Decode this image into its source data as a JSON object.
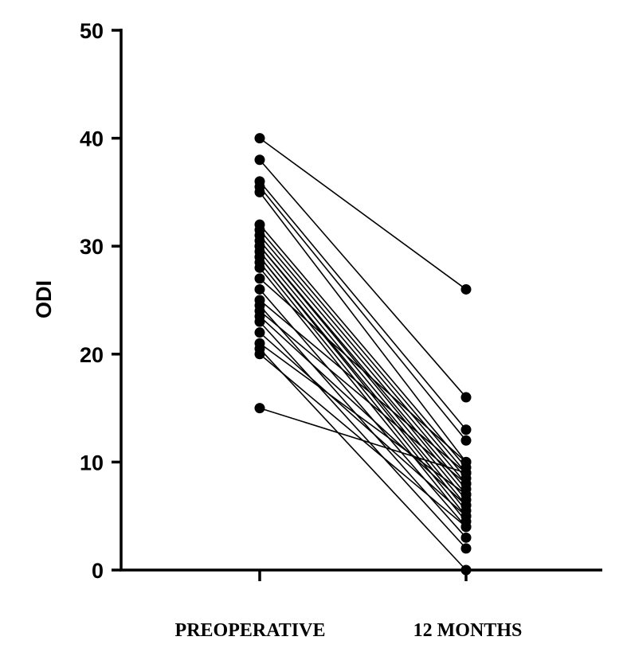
{
  "chart_data": {
    "type": "line",
    "categories": [
      "PREOPERATIVE",
      "12 MONTHS"
    ],
    "ylabel": "ODI",
    "ylim": [
      0,
      50
    ],
    "yticks": [
      "0",
      "10",
      "20",
      "30",
      "40",
      "50"
    ],
    "grid": false,
    "legend": "none",
    "line_color": "#000000",
    "series": [
      {
        "values": [
          40,
          26
        ]
      },
      {
        "values": [
          38,
          16
        ]
      },
      {
        "values": [
          36,
          13
        ]
      },
      {
        "values": [
          35.5,
          12
        ]
      },
      {
        "values": [
          35,
          10
        ]
      },
      {
        "values": [
          32,
          9.5
        ]
      },
      {
        "values": [
          31.5,
          9
        ]
      },
      {
        "values": [
          31,
          8.5
        ]
      },
      {
        "values": [
          30.5,
          8
        ]
      },
      {
        "values": [
          30,
          7.5
        ]
      },
      {
        "values": [
          30,
          7
        ]
      },
      {
        "values": [
          29.5,
          6.5
        ]
      },
      {
        "values": [
          29,
          6
        ]
      },
      {
        "values": [
          29,
          5.5
        ]
      },
      {
        "values": [
          28.5,
          5
        ]
      },
      {
        "values": [
          28,
          4.5
        ]
      },
      {
        "values": [
          27,
          10
        ]
      },
      {
        "values": [
          26,
          4
        ]
      },
      {
        "values": [
          25,
          9
        ]
      },
      {
        "values": [
          24.5,
          3
        ]
      },
      {
        "values": [
          24,
          8
        ]
      },
      {
        "values": [
          23.5,
          6
        ]
      },
      {
        "values": [
          23,
          2
        ]
      },
      {
        "values": [
          22,
          5
        ]
      },
      {
        "values": [
          21,
          7
        ]
      },
      {
        "values": [
          20.5,
          0
        ]
      },
      {
        "values": [
          20,
          4
        ]
      },
      {
        "values": [
          15,
          9
        ]
      }
    ]
  }
}
